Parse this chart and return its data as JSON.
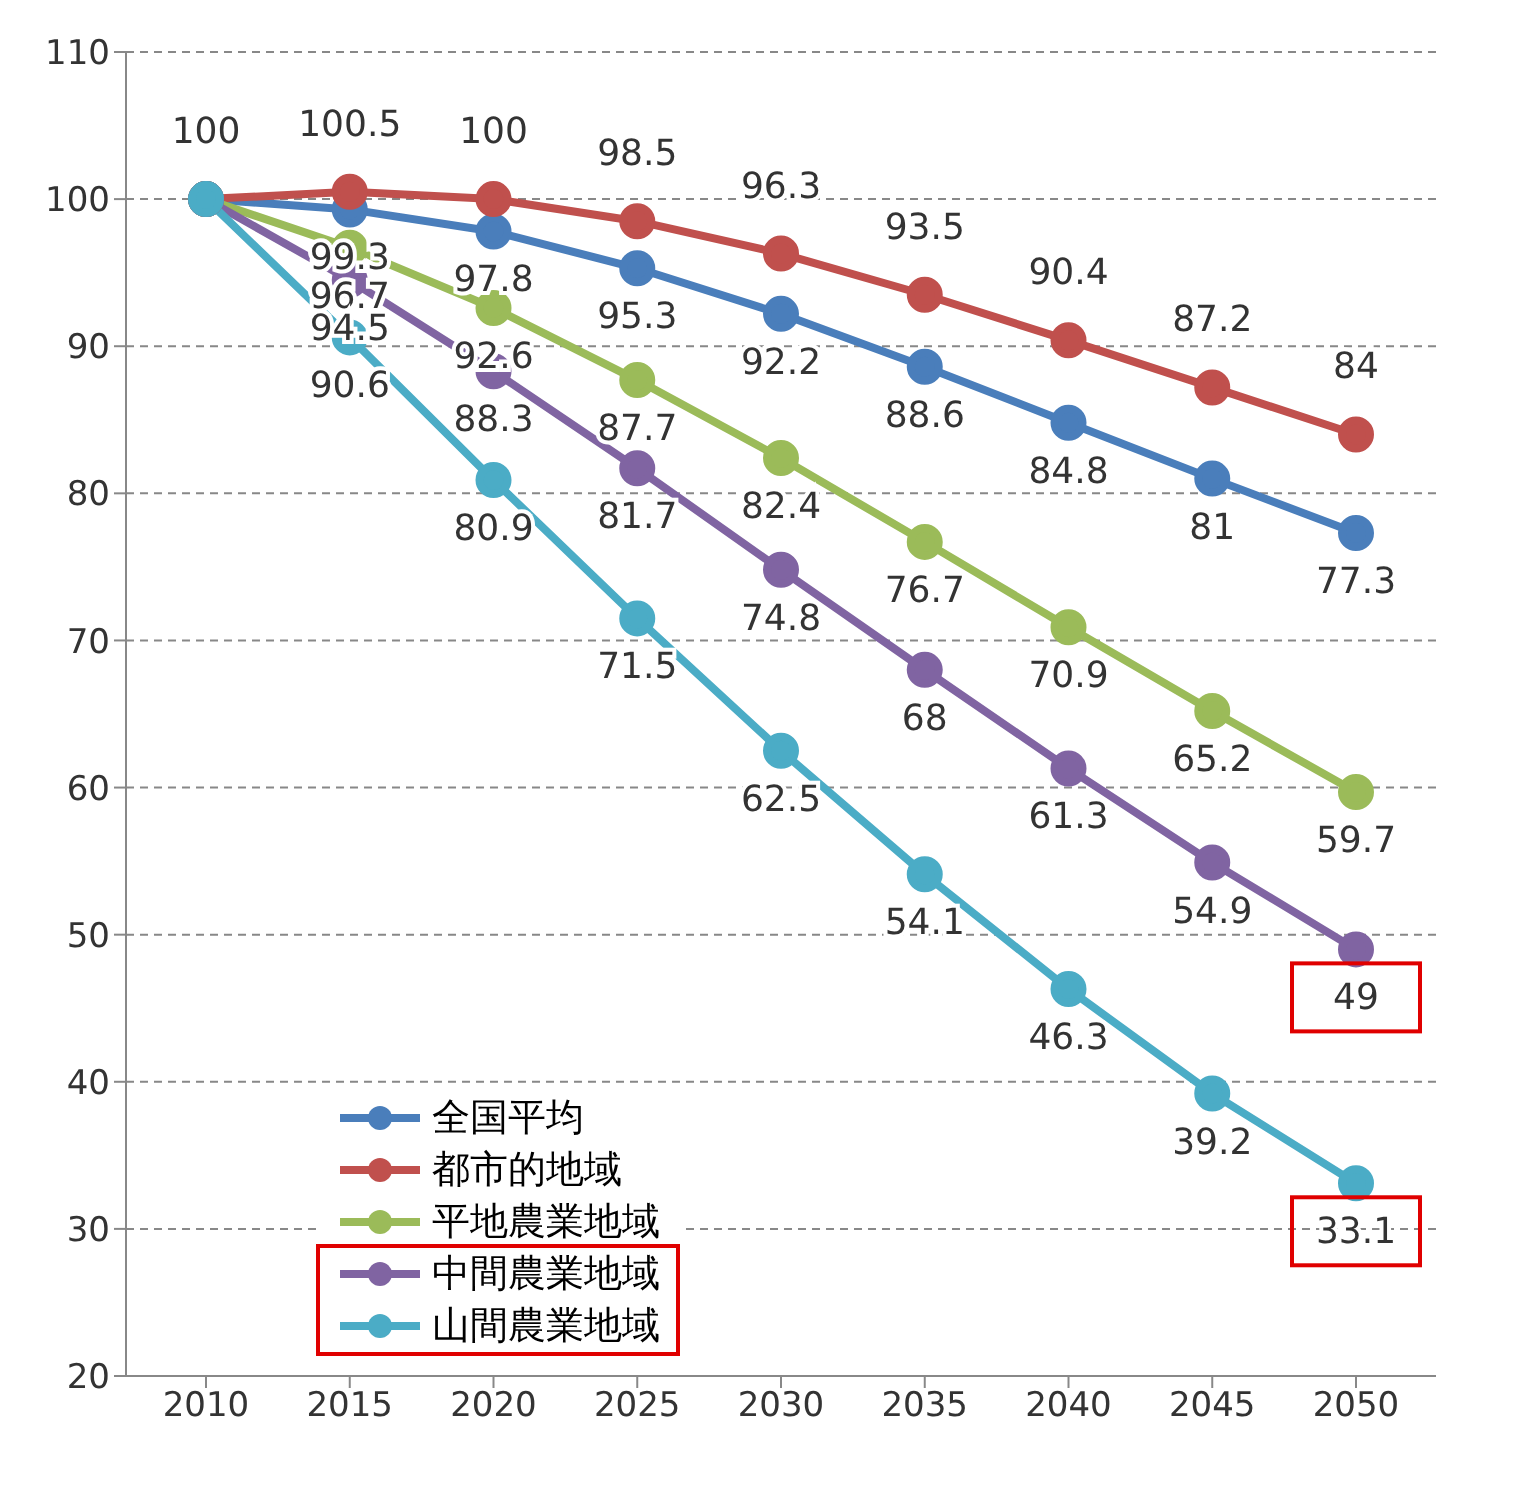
{
  "chart_data": {
    "type": "line",
    "categories": [
      "2010",
      "2015",
      "2020",
      "2025",
      "2030",
      "2035",
      "2040",
      "2045",
      "2050"
    ],
    "series": [
      {
        "name": "全国平均",
        "color": "#4a7ebb",
        "values": [
          100,
          99.3,
          97.8,
          95.3,
          92.2,
          88.6,
          84.8,
          81,
          77.3
        ],
        "value_labels": [
          null,
          "99.3",
          "97.8",
          "95.3",
          "92.2",
          "88.6",
          "84.8",
          "81",
          "77.3"
        ]
      },
      {
        "name": "都市的地域",
        "color": "#c0504d",
        "values": [
          100,
          100.5,
          100,
          98.5,
          96.3,
          93.5,
          90.4,
          87.2,
          84
        ],
        "value_labels": [
          "100",
          "100.5",
          "100",
          "98.5",
          "96.3",
          "93.5",
          "90.4",
          "87.2",
          "84"
        ]
      },
      {
        "name": "平地農業地域",
        "color": "#9bbb59",
        "values": [
          100,
          96.7,
          92.6,
          87.7,
          82.4,
          76.7,
          70.9,
          65.2,
          59.7
        ],
        "value_labels": [
          null,
          "96.7",
          "92.6",
          "87.7",
          "82.4",
          "76.7",
          "70.9",
          "65.2",
          "59.7"
        ]
      },
      {
        "name": "中間農業地域",
        "color": "#8064a2",
        "values": [
          100,
          94.5,
          88.3,
          81.7,
          74.8,
          68,
          61.3,
          54.9,
          49
        ],
        "value_labels": [
          null,
          "94.5",
          "88.3",
          "81.7",
          "74.8",
          "68",
          "61.3",
          "54.9",
          "49"
        ]
      },
      {
        "name": "山間農業地域",
        "color": "#4bacc6",
        "values": [
          100,
          90.6,
          80.9,
          71.5,
          62.5,
          54.1,
          46.3,
          39.2,
          33.1
        ],
        "value_labels": [
          null,
          "90.6",
          "80.9",
          "71.5",
          "62.5",
          "54.1",
          "46.3",
          "39.2",
          "33.1"
        ]
      }
    ],
    "ylim": [
      20,
      110
    ],
    "yticks": [
      20,
      30,
      40,
      50,
      60,
      70,
      80,
      90,
      100,
      110
    ],
    "grid": "y",
    "legend": "bottom left",
    "marker": "circle",
    "line_style": "solid"
  }
}
